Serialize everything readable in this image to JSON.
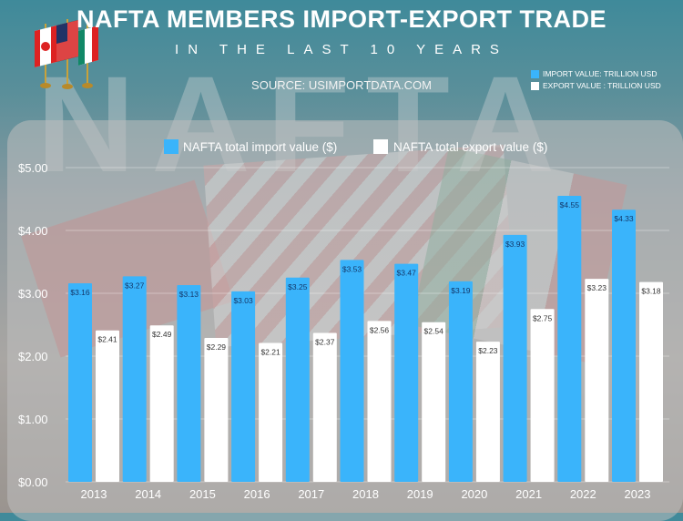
{
  "header": {
    "title": "NAFTA MEMBERS IMPORT-EXPORT TRADE",
    "subtitle": "IN THE LAST 10 YEARS",
    "source": "SOURCE: USIMPORTDATA.COM",
    "watermark": "NAFTA",
    "mini_legend": [
      "IMPORT VALUE: TRILLION USD",
      "EXPORT VALUE : TRILLION USD"
    ]
  },
  "colors": {
    "import": "#3ab4fb",
    "export": "#ffffff"
  },
  "chart_data": {
    "type": "bar",
    "title": "NAFTA MEMBERS IMPORT-EXPORT TRADE",
    "categories": [
      "2013",
      "2014",
      "2015",
      "2016",
      "2017",
      "2018",
      "2019",
      "2020",
      "2021",
      "2022",
      "2023"
    ],
    "series": [
      {
        "name": "NAFTA total import value ($)",
        "values": [
          3.16,
          3.27,
          3.13,
          3.03,
          3.25,
          3.53,
          3.47,
          3.19,
          3.93,
          4.55,
          4.33
        ],
        "labels": [
          "$3.16",
          "$3.27",
          "$3.13",
          "$3.03",
          "$3.25",
          "$3.53",
          "$3.47",
          "$3.19",
          "$3.93",
          "$4.55",
          "$4.33"
        ]
      },
      {
        "name": "NAFTA total export value ($)",
        "values": [
          2.41,
          2.49,
          2.29,
          2.21,
          2.37,
          2.56,
          2.54,
          2.23,
          2.75,
          3.23,
          3.18
        ],
        "labels": [
          "$2.41",
          "$2.49",
          "$2.29",
          "$2.21",
          "$2.37",
          "$2.56",
          "$2.54",
          "$2.23",
          "$2.75",
          "$3.23",
          "$3.18"
        ]
      }
    ],
    "yticks": [
      0,
      1,
      2,
      3,
      4,
      5
    ],
    "ytick_labels": [
      "$0.00",
      "$1.00",
      "$2.00",
      "$3.00",
      "$4.00",
      "$5.00"
    ],
    "ylim": [
      0,
      5
    ],
    "xlabel": "",
    "ylabel": "",
    "grid": true,
    "legend_position": "top-center"
  }
}
